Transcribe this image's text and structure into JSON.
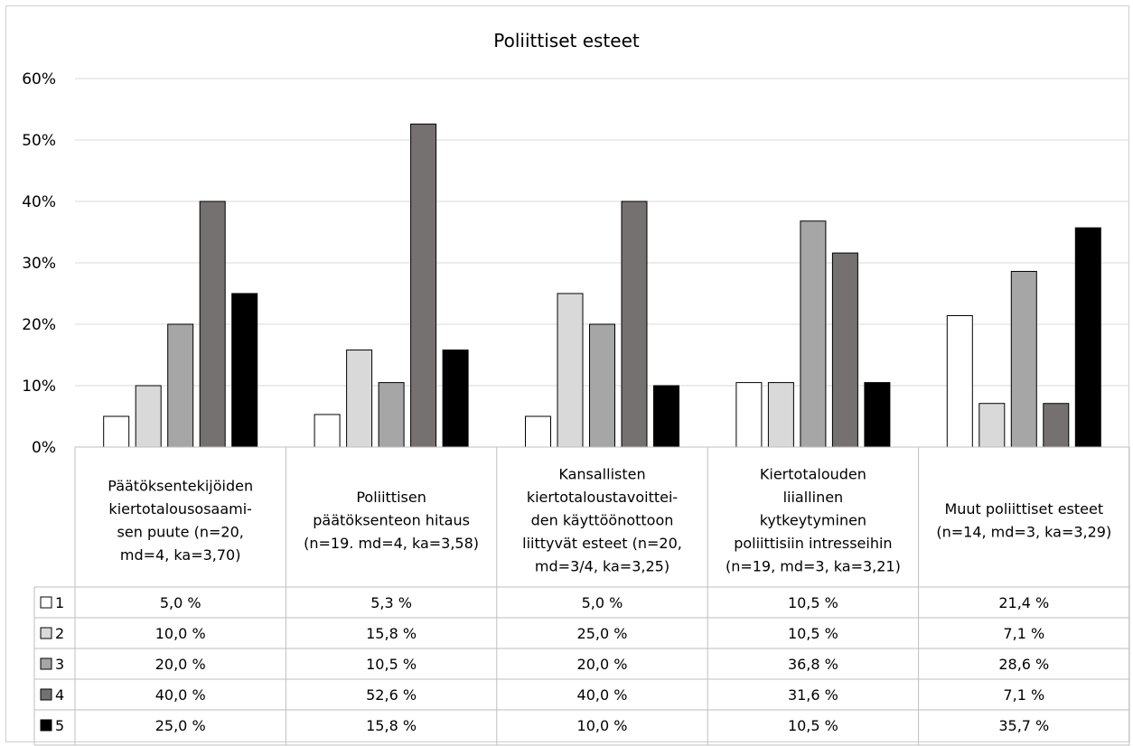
{
  "chart_data": {
    "type": "bar",
    "title": "Poliittiset esteet",
    "xlabel": "",
    "ylabel": "",
    "ylim": [
      0,
      60
    ],
    "yticks": [
      "0%",
      "10%",
      "20%",
      "30%",
      "40%",
      "50%",
      "60%"
    ],
    "grid": true,
    "legend": "data-table",
    "categories": [
      [
        "Päätöksentekijöiden",
        "kiertotalousosaami-",
        "sen puute (n=20,",
        "md=4, ka=3,70)"
      ],
      [
        "Poliittisen",
        "päätöksenteon hitaus",
        "(n=19. md=4, ka=3,58)"
      ],
      [
        "Kansallisten",
        "kiertotaloustavoittei-",
        "den käyttöönottoon",
        "liittyvät esteet (n=20,",
        "md=3/4, ka=3,25)"
      ],
      [
        "Kiertotalouden",
        "liiallinen",
        "kytkeytyminen",
        "poliittisiin intresseihin",
        "(n=19, md=3, ka=3,21)"
      ],
      [
        "Muut poliittiset esteet",
        "(n=14, md=3, ka=3,29)"
      ]
    ],
    "series": [
      {
        "name": "1",
        "color": "#ffffff",
        "values": [
          5.0,
          5.3,
          5.0,
          10.5,
          21.4
        ],
        "labels": [
          "5,0 %",
          "5,3 %",
          "5,0 %",
          "10,5 %",
          "21,4 %"
        ]
      },
      {
        "name": "2",
        "color": "#d9d9d9",
        "values": [
          10.0,
          15.8,
          25.0,
          10.5,
          7.1
        ],
        "labels": [
          "10,0 %",
          "15,8 %",
          "25,0 %",
          "10,5 %",
          "7,1 %"
        ]
      },
      {
        "name": "3",
        "color": "#a6a6a6",
        "values": [
          20.0,
          10.5,
          20.0,
          36.8,
          28.6
        ],
        "labels": [
          "20,0 %",
          "10,5 %",
          "20,0 %",
          "36,8 %",
          "28,6 %"
        ]
      },
      {
        "name": "4",
        "color": "#767171",
        "values": [
          40.0,
          52.6,
          40.0,
          31.6,
          7.1
        ],
        "labels": [
          "40,0 %",
          "52,6 %",
          "40,0 %",
          "31,6 %",
          "7,1 %"
        ]
      },
      {
        "name": "5",
        "color": "#000000",
        "values": [
          25.0,
          15.8,
          10.0,
          10.5,
          35.7
        ],
        "labels": [
          "25,0 %",
          "15,8 %",
          "10,0 %",
          "10,5 %",
          "35,7 %"
        ]
      }
    ]
  }
}
